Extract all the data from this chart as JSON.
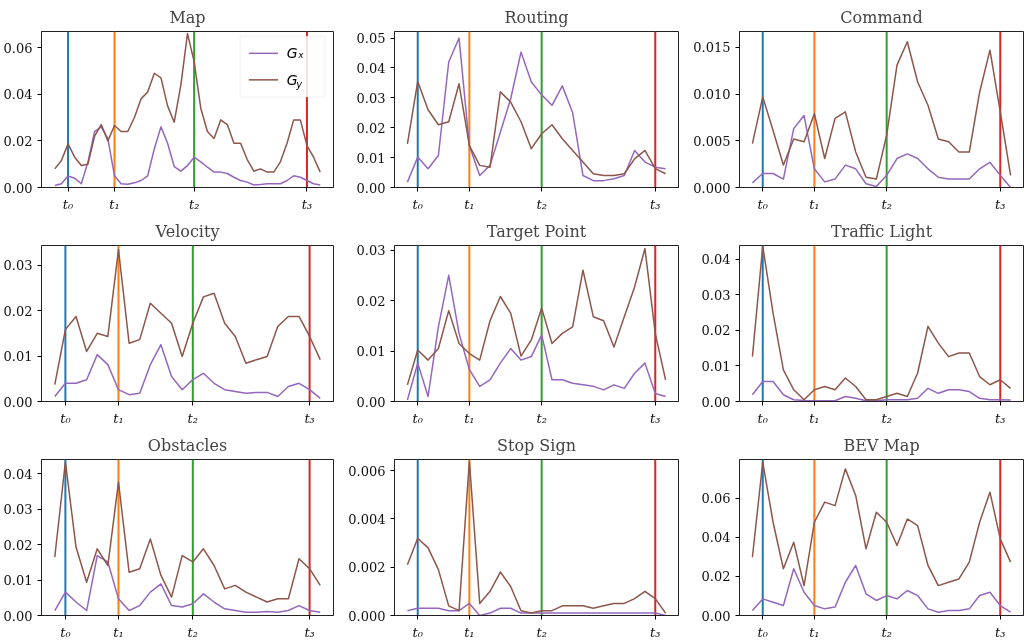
{
  "chart_data": [
    {
      "type": "line",
      "title": "Map",
      "legend": "top right",
      "categories": [
        null,
        null,
        "t₀",
        null,
        null,
        null,
        null,
        null,
        null,
        "t₁",
        null,
        null,
        null,
        null,
        null,
        null,
        null,
        null,
        null,
        null,
        null,
        "t₂",
        null,
        null,
        null,
        null,
        null,
        null,
        null,
        null,
        null,
        null,
        null,
        null,
        null,
        null,
        null,
        null,
        "t₃",
        null,
        null
      ],
      "ylim": [
        0,
        0.0669
      ],
      "yticks": [
        {
          "value": 0,
          "label": "0.00"
        },
        {
          "value": 0.02,
          "label": "0.02"
        },
        {
          "value": 0.04,
          "label": "0.04"
        },
        {
          "value": 0.06,
          "label": "0.06"
        }
      ],
      "series": [
        {
          "name": "Gₓ",
          "color": "#9467bd",
          "values": [
            0.0009,
            0.0016,
            0.0049,
            0.004,
            0.0016,
            0.011,
            0.024,
            0.026,
            0.021,
            0.005,
            0.0016,
            0.0014,
            0.002,
            0.003,
            0.005,
            0.0166,
            0.026,
            0.019,
            0.009,
            0.007,
            0.0094,
            0.013,
            0.011,
            0.0087,
            0.0066,
            0.0066,
            0.006,
            0.0044,
            0.003,
            0.0023,
            0.0011,
            0.0013,
            0.0016,
            0.0016,
            0.0016,
            0.003,
            0.005,
            0.0044,
            0.003,
            0.0016,
            0.0011
          ]
        },
        {
          "name": "G$_{y}$",
          "color": "#8c564b",
          "values": [
            0.008,
            0.0116,
            0.0187,
            0.013,
            0.0094,
            0.01,
            0.022,
            0.027,
            0.02,
            0.0266,
            0.024,
            0.024,
            0.03,
            0.038,
            0.041,
            0.049,
            0.047,
            0.035,
            0.028,
            0.044,
            0.066,
            0.054,
            0.034,
            0.024,
            0.021,
            0.029,
            0.027,
            0.019,
            0.019,
            0.012,
            0.007,
            0.008,
            0.0066,
            0.0066,
            0.011,
            0.019,
            0.029,
            0.029,
            0.018,
            0.013,
            0.0066
          ]
        }
      ],
      "ref_lines": [
        {
          "axis": "x",
          "value": "t₀",
          "color": "#1f77b4"
        },
        {
          "axis": "x",
          "value": "t₁",
          "color": "#ff7f0e"
        },
        {
          "axis": "x",
          "value": "t₂",
          "color": "#2ca02c"
        },
        {
          "axis": "x",
          "value": "t₃",
          "color": "#d62728"
        }
      ]
    },
    {
      "type": "line",
      "title": "Routing",
      "categories": [
        null,
        "t₀",
        null,
        null,
        null,
        null,
        "t₁",
        null,
        null,
        null,
        null,
        null,
        null,
        "t₂",
        null,
        null,
        null,
        null,
        null,
        null,
        null,
        null,
        null,
        null,
        "t₃",
        null
      ],
      "ylim": [
        0,
        0.0522
      ],
      "yticks": [
        {
          "value": 0,
          "label": "0.00"
        },
        {
          "value": 0.01,
          "label": "0.01"
        },
        {
          "value": 0.02,
          "label": "0.02"
        },
        {
          "value": 0.03,
          "label": "0.03"
        },
        {
          "value": 0.04,
          "label": "0.04"
        },
        {
          "value": 0.05,
          "label": "0.05"
        }
      ],
      "series": [
        {
          "color": "#9467bd",
          "values": [
            0.0018,
            0.0102,
            0.0063,
            0.0107,
            0.042,
            0.05,
            0.014,
            0.004,
            0.0074,
            0.0185,
            0.0297,
            0.0453,
            0.0353,
            0.031,
            0.0275,
            0.034,
            0.025,
            0.004,
            0.0023,
            0.0023,
            0.0029,
            0.004,
            0.0124,
            0.0085,
            0.0068,
            0.0063
          ]
        },
        {
          "color": "#8c564b",
          "values": [
            0.0146,
            0.0355,
            0.026,
            0.021,
            0.022,
            0.0347,
            0.014,
            0.0074,
            0.0068,
            0.032,
            0.0286,
            0.022,
            0.013,
            0.018,
            0.021,
            0.0163,
            0.0124,
            0.0085,
            0.0046,
            0.004,
            0.004,
            0.0046,
            0.0096,
            0.0124,
            0.0063,
            0.0046
          ]
        }
      ],
      "ref_lines": [
        {
          "axis": "x",
          "value": "t₀",
          "color": "#1f77b4"
        },
        {
          "axis": "x",
          "value": "t₁",
          "color": "#ff7f0e"
        },
        {
          "axis": "x",
          "value": "t₂",
          "color": "#2ca02c"
        },
        {
          "axis": "x",
          "value": "t₃",
          "color": "#d62728"
        }
      ]
    },
    {
      "type": "line",
      "title": "Command",
      "categories": [
        null,
        "t₀",
        null,
        null,
        null,
        null,
        "t₁",
        null,
        null,
        null,
        null,
        null,
        null,
        "t₂",
        null,
        null,
        null,
        null,
        null,
        null,
        null,
        null,
        null,
        null,
        "t₃",
        null
      ],
      "ylim": [
        0,
        0.0167
      ],
      "yticks": [
        {
          "value": 0,
          "label": "0.000"
        },
        {
          "value": 0.005,
          "label": "0.005"
        },
        {
          "value": 0.01,
          "label": "0.010"
        },
        {
          "value": 0.015,
          "label": "0.015"
        }
      ],
      "series": [
        {
          "color": "#9467bd",
          "values": [
            0.0005,
            0.0015,
            0.0015,
            0.0009,
            0.0063,
            0.0077,
            0.002,
            0.0006,
            0.0009,
            0.0024,
            0.002,
            0.0004,
            0.0001,
            0.0013,
            0.0031,
            0.0036,
            0.0031,
            0.002,
            0.0011,
            0.0009,
            0.0009,
            0.0009,
            0.002,
            0.0027,
            0.0013,
            0.0
          ]
        },
        {
          "color": "#8c564b",
          "values": [
            0.0047,
            0.0097,
            0.0061,
            0.0024,
            0.0052,
            0.0049,
            0.0079,
            0.0031,
            0.0074,
            0.0081,
            0.0038,
            0.0011,
            0.0009,
            0.0056,
            0.0131,
            0.0156,
            0.0113,
            0.0088,
            0.0052,
            0.0049,
            0.0038,
            0.0038,
            0.0102,
            0.0147,
            0.0081,
            0.0013
          ]
        }
      ],
      "ref_lines": [
        {
          "axis": "x",
          "value": "t₀",
          "color": "#1f77b4"
        },
        {
          "axis": "x",
          "value": "t₁",
          "color": "#ff7f0e"
        },
        {
          "axis": "x",
          "value": "t₂",
          "color": "#2ca02c"
        },
        {
          "axis": "x",
          "value": "t₃",
          "color": "#d62728"
        }
      ]
    },
    {
      "type": "line",
      "title": "Velocity",
      "categories": [
        null,
        "t₀",
        null,
        null,
        null,
        null,
        "t₁",
        null,
        null,
        null,
        null,
        null,
        null,
        "t₂",
        null,
        null,
        null,
        null,
        null,
        null,
        null,
        null,
        null,
        null,
        "t₃",
        null
      ],
      "ylim": [
        0,
        0.0343
      ],
      "yticks": [
        {
          "value": 0,
          "label": "0.00"
        },
        {
          "value": 0.01,
          "label": "0.01"
        },
        {
          "value": 0.02,
          "label": "0.02"
        },
        {
          "value": 0.03,
          "label": "0.03"
        }
      ],
      "series": [
        {
          "color": "#9467bd",
          "values": [
            0.0011,
            0.004,
            0.004,
            0.0048,
            0.0103,
            0.0081,
            0.0026,
            0.0015,
            0.0018,
            0.0081,
            0.0125,
            0.0055,
            0.0026,
            0.0048,
            0.0062,
            0.004,
            0.0026,
            0.0022,
            0.0018,
            0.002,
            0.002,
            0.0011,
            0.0033,
            0.004,
            0.0026,
            0.0007
          ]
        },
        {
          "color": "#8c564b",
          "values": [
            0.0037,
            0.0158,
            0.0187,
            0.011,
            0.015,
            0.0143,
            0.0334,
            0.0128,
            0.0136,
            0.0216,
            0.0194,
            0.0172,
            0.0099,
            0.0172,
            0.023,
            0.0238,
            0.0172,
            0.0143,
            0.0084,
            0.0092,
            0.0099,
            0.0165,
            0.0187,
            0.0187,
            0.0143,
            0.0092
          ]
        }
      ],
      "ref_lines": [
        {
          "axis": "x",
          "value": "t₀",
          "color": "#1f77b4"
        },
        {
          "axis": "x",
          "value": "t₁",
          "color": "#ff7f0e"
        },
        {
          "axis": "x",
          "value": "t₂",
          "color": "#2ca02c"
        },
        {
          "axis": "x",
          "value": "t₃",
          "color": "#d62728"
        }
      ]
    },
    {
      "type": "line",
      "title": "Target Point",
      "categories": [
        null,
        "t₀",
        null,
        null,
        null,
        null,
        "t₁",
        null,
        null,
        null,
        null,
        null,
        null,
        "t₂",
        null,
        null,
        null,
        null,
        null,
        null,
        null,
        null,
        null,
        null,
        "t₃",
        null
      ],
      "ylim": [
        0,
        0.0309
      ],
      "yticks": [
        {
          "value": 0,
          "label": "0.00"
        },
        {
          "value": 0.01,
          "label": "0.01"
        },
        {
          "value": 0.02,
          "label": "0.02"
        },
        {
          "value": 0.03,
          "label": "0.03"
        }
      ],
      "series": [
        {
          "color": "#9467bd",
          "values": [
            0.0003,
            0.0076,
            0.001,
            0.0148,
            0.025,
            0.0135,
            0.0063,
            0.003,
            0.0043,
            0.0076,
            0.0105,
            0.0082,
            0.0089,
            0.0132,
            0.0043,
            0.0043,
            0.0036,
            0.0033,
            0.003,
            0.0023,
            0.0033,
            0.0026,
            0.0056,
            0.0076,
            0.0016,
            0.001
          ]
        },
        {
          "color": "#8c564b",
          "values": [
            0.0033,
            0.0102,
            0.0082,
            0.0105,
            0.018,
            0.0115,
            0.0095,
            0.0082,
            0.016,
            0.0208,
            0.0175,
            0.009,
            0.0122,
            0.0185,
            0.0115,
            0.0135,
            0.0148,
            0.026,
            0.0168,
            0.016,
            0.0108,
            0.0168,
            0.0227,
            0.0303,
            0.0135,
            0.0043
          ]
        }
      ],
      "ref_lines": [
        {
          "axis": "x",
          "value": "t₀",
          "color": "#1f77b4"
        },
        {
          "axis": "x",
          "value": "t₁",
          "color": "#ff7f0e"
        },
        {
          "axis": "x",
          "value": "t₂",
          "color": "#2ca02c"
        },
        {
          "axis": "x",
          "value": "t₃",
          "color": "#d62728"
        }
      ]
    },
    {
      "type": "line",
      "title": "Traffic Light",
      "categories": [
        null,
        "t₀",
        null,
        null,
        null,
        null,
        "t₁",
        null,
        null,
        null,
        null,
        null,
        null,
        "t₂",
        null,
        null,
        null,
        null,
        null,
        null,
        null,
        null,
        null,
        null,
        "t₃",
        null
      ],
      "ylim": [
        0,
        0.0438
      ],
      "yticks": [
        {
          "value": 0,
          "label": "0.00"
        },
        {
          "value": 0.01,
          "label": "0.01"
        },
        {
          "value": 0.02,
          "label": "0.02"
        },
        {
          "value": 0.03,
          "label": "0.03"
        },
        {
          "value": 0.04,
          "label": "0.04"
        }
      ],
      "series": [
        {
          "color": "#9467bd",
          "values": [
            0.0019,
            0.0056,
            0.0056,
            0.0019,
            0.0005,
            0.0003,
            0.0002,
            0.0002,
            0.0002,
            0.0014,
            0.0009,
            0.0002,
            0.0002,
            0.0005,
            0.0005,
            0.0005,
            0.0009,
            0.0037,
            0.0023,
            0.0033,
            0.0033,
            0.0028,
            0.0009,
            0.0005,
            0.0005,
            0.0004
          ]
        },
        {
          "color": "#8c564b",
          "values": [
            0.0126,
            0.0436,
            0.0248,
            0.0089,
            0.0033,
            0.0005,
            0.0033,
            0.0042,
            0.0033,
            0.0066,
            0.0042,
            0.0005,
            0.0005,
            0.0014,
            0.0023,
            0.0014,
            0.008,
            0.0211,
            0.0164,
            0.0126,
            0.0136,
            0.0136,
            0.007,
            0.0047,
            0.0061,
            0.0037
          ]
        }
      ],
      "ref_lines": [
        {
          "axis": "x",
          "value": "t₀",
          "color": "#1f77b4"
        },
        {
          "axis": "x",
          "value": "t₁",
          "color": "#ff7f0e"
        },
        {
          "axis": "x",
          "value": "t₂",
          "color": "#2ca02c"
        },
        {
          "axis": "x",
          "value": "t₃",
          "color": "#d62728"
        }
      ]
    },
    {
      "type": "line",
      "title": "Obstacles",
      "categories": [
        null,
        "t₀",
        null,
        null,
        null,
        null,
        "t₁",
        null,
        null,
        null,
        null,
        null,
        null,
        "t₂",
        null,
        null,
        null,
        null,
        null,
        null,
        null,
        null,
        null,
        null,
        "t₃",
        null
      ],
      "ylim": [
        0,
        0.044
      ],
      "yticks": [
        {
          "value": 0,
          "label": "0.00"
        },
        {
          "value": 0.01,
          "label": "0.01"
        },
        {
          "value": 0.02,
          "label": "0.02"
        },
        {
          "value": 0.03,
          "label": "0.03"
        },
        {
          "value": 0.04,
          "label": "0.04"
        }
      ],
      "series": [
        {
          "color": "#9467bd",
          "values": [
            0.0014,
            0.0066,
            0.0038,
            0.0014,
            0.0169,
            0.0151,
            0.0047,
            0.0014,
            0.0028,
            0.0066,
            0.0089,
            0.0028,
            0.0024,
            0.0033,
            0.0061,
            0.0038,
            0.0019,
            0.0014,
            0.0009,
            0.0009,
            0.0011,
            0.0009,
            0.0014,
            0.0028,
            0.0014,
            0.0009
          ]
        },
        {
          "color": "#8c564b",
          "values": [
            0.0165,
            0.0433,
            0.0193,
            0.0094,
            0.0188,
            0.0141,
            0.0376,
            0.0122,
            0.0132,
            0.0216,
            0.0113,
            0.0052,
            0.0169,
            0.0151,
            0.0188,
            0.0141,
            0.0075,
            0.0085,
            0.0066,
            0.0052,
            0.0038,
            0.0047,
            0.0047,
            0.016,
            0.0132,
            0.0085
          ]
        }
      ],
      "ref_lines": [
        {
          "axis": "x",
          "value": "t₀",
          "color": "#1f77b4"
        },
        {
          "axis": "x",
          "value": "t₁",
          "color": "#ff7f0e"
        },
        {
          "axis": "x",
          "value": "t₂",
          "color": "#2ca02c"
        },
        {
          "axis": "x",
          "value": "t₃",
          "color": "#d62728"
        }
      ]
    },
    {
      "type": "line",
      "title": "Stop Sign",
      "categories": [
        null,
        "t₀",
        null,
        null,
        null,
        null,
        "t₁",
        null,
        null,
        null,
        null,
        null,
        null,
        "t₂",
        null,
        null,
        null,
        null,
        null,
        null,
        null,
        null,
        null,
        null,
        "t₃",
        null
      ],
      "ylim": [
        0,
        0.00646
      ],
      "yticks": [
        {
          "value": 0,
          "label": "0.000"
        },
        {
          "value": 0.002,
          "label": "0.002"
        },
        {
          "value": 0.004,
          "label": "0.004"
        },
        {
          "value": 0.006,
          "label": "0.006"
        }
      ],
      "series": [
        {
          "color": "#9467bd",
          "values": [
            0.0002,
            0.0003,
            0.0003,
            0.0003,
            0.0002,
            0.0002,
            0.0005,
            0.0,
            0.0001,
            0.0003,
            0.0003,
            0.0001,
            0.0001,
            0.0001,
            0.0001,
            0.0001,
            0.0001,
            0.0001,
            0.0001,
            0.0001,
            0.0001,
            0.0001,
            0.0001,
            0.0001,
            0.0001,
            0.0
          ]
        },
        {
          "color": "#8c564b",
          "values": [
            0.0021,
            0.0032,
            0.0028,
            0.0019,
            0.0004,
            0.0002,
            0.0064,
            0.0005,
            0.001,
            0.0018,
            0.0012,
            0.0002,
            0.0001,
            0.0002,
            0.0002,
            0.0004,
            0.0004,
            0.0004,
            0.0003,
            0.0004,
            0.0005,
            0.0005,
            0.0007,
            0.001,
            0.0007,
            0.0001
          ]
        }
      ],
      "ref_lines": [
        {
          "axis": "x",
          "value": "t₀",
          "color": "#1f77b4"
        },
        {
          "axis": "x",
          "value": "t₁",
          "color": "#ff7f0e"
        },
        {
          "axis": "x",
          "value": "t₂",
          "color": "#2ca02c"
        },
        {
          "axis": "x",
          "value": "t₃",
          "color": "#d62728"
        }
      ]
    },
    {
      "type": "line",
      "title": "BEV Map",
      "categories": [
        null,
        "t₀",
        null,
        null,
        null,
        null,
        "t₁",
        null,
        null,
        null,
        null,
        null,
        null,
        "t₂",
        null,
        null,
        null,
        null,
        null,
        null,
        null,
        null,
        null,
        null,
        "t₃",
        null
      ],
      "ylim": [
        0,
        0.0798
      ],
      "yticks": [
        {
          "value": 0,
          "label": "0.00"
        },
        {
          "value": 0.02,
          "label": "0.02"
        },
        {
          "value": 0.04,
          "label": "0.04"
        },
        {
          "value": 0.06,
          "label": "0.06"
        }
      ],
      "series": [
        {
          "color": "#9467bd",
          "values": [
            0.0026,
            0.0085,
            0.0068,
            0.0051,
            0.0239,
            0.0119,
            0.0051,
            0.0034,
            0.0043,
            0.017,
            0.0256,
            0.0111,
            0.0077,
            0.0102,
            0.0085,
            0.0128,
            0.0102,
            0.0034,
            0.0017,
            0.0026,
            0.0026,
            0.0034,
            0.0102,
            0.0119,
            0.0051,
            0.0017
          ]
        },
        {
          "color": "#8c564b",
          "values": [
            0.0298,
            0.0784,
            0.0477,
            0.0239,
            0.0375,
            0.0153,
            0.0477,
            0.058,
            0.0562,
            0.075,
            0.0614,
            0.0341,
            0.0528,
            0.0477,
            0.0358,
            0.0494,
            0.046,
            0.0256,
            0.0153,
            0.017,
            0.0187,
            0.0273,
            0.0477,
            0.0631,
            0.0392,
            0.0273
          ]
        }
      ],
      "ref_lines": [
        {
          "axis": "x",
          "value": "t₀",
          "color": "#1f77b4"
        },
        {
          "axis": "x",
          "value": "t₁",
          "color": "#ff7f0e"
        },
        {
          "axis": "x",
          "value": "t₂",
          "color": "#2ca02c"
        },
        {
          "axis": "x",
          "value": "t₃",
          "color": "#d62728"
        }
      ]
    }
  ]
}
